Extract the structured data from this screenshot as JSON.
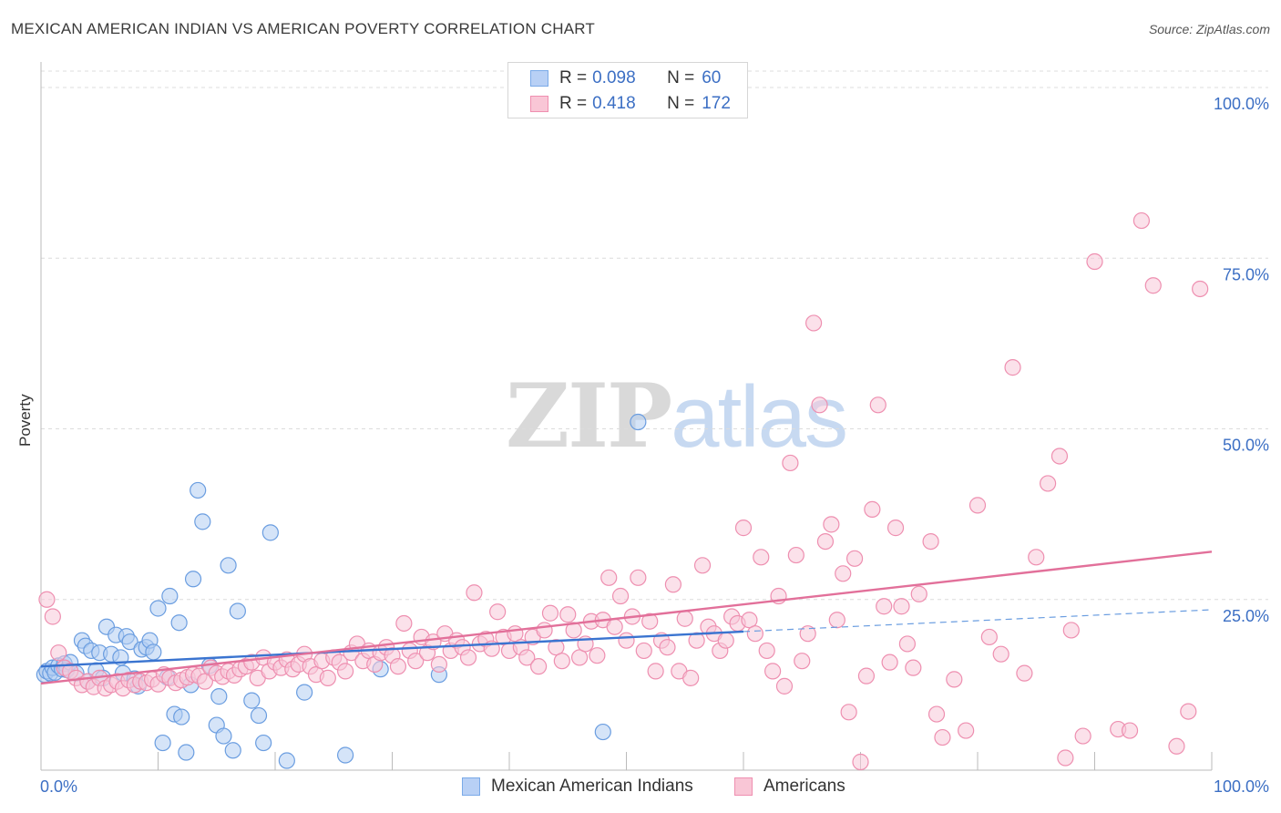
{
  "header": {
    "title": "MEXICAN AMERICAN INDIAN VS AMERICAN POVERTY CORRELATION CHART",
    "source": "Source: ZipAtlas.com"
  },
  "legend": {
    "rows": [
      {
        "r_label": "R =",
        "r_value": "0.098",
        "n_label": "N =",
        "n_value": "60",
        "color": "#7aaae8",
        "fill": "#b8d0f5"
      },
      {
        "r_label": "R =",
        "r_value": "0.418",
        "n_label": "N =",
        "n_value": "172",
        "color": "#ef8fb0",
        "fill": "#f9c6d6"
      }
    ]
  },
  "watermark": {
    "part1": "ZIP",
    "part2": "atlas"
  },
  "chart_data": {
    "type": "scatter",
    "title": "MEXICAN AMERICAN INDIAN VS AMERICAN POVERTY CORRELATION CHART",
    "ylabel": "Poverty",
    "xlim": [
      0,
      100
    ],
    "ylim": [
      0,
      100
    ],
    "x_tick_labels": [
      "0.0%",
      "100.0%"
    ],
    "y_tick_labels": [
      "25.0%",
      "50.0%",
      "75.0%",
      "100.0%"
    ],
    "y_ticks": [
      25,
      50,
      75,
      100
    ],
    "grid": true,
    "legend_position": "top-center",
    "series": [
      {
        "name": "Mexican American Indians",
        "color": "#6a9de0",
        "fill": "#b3cdf3",
        "trend": {
          "x": [
            0,
            60
          ],
          "y": [
            15.2,
            20.3
          ],
          "dashed_to": [
            100,
            23.5
          ]
        },
        "points": [
          [
            0.3,
            14
          ],
          [
            0.5,
            14.5
          ],
          [
            0.8,
            14.2
          ],
          [
            1,
            15
          ],
          [
            1.2,
            14.3
          ],
          [
            1.5,
            15.3
          ],
          [
            1.8,
            14.8
          ],
          [
            2,
            15.6
          ],
          [
            2.2,
            14.7
          ],
          [
            2.5,
            15.8
          ],
          [
            3,
            14.2
          ],
          [
            3.5,
            19
          ],
          [
            3.8,
            18.2
          ],
          [
            4,
            13
          ],
          [
            4.3,
            17.5
          ],
          [
            4.7,
            14.6
          ],
          [
            5,
            17.2
          ],
          [
            5.3,
            13.5
          ],
          [
            5.6,
            21
          ],
          [
            6,
            17
          ],
          [
            6.4,
            19.8
          ],
          [
            6.8,
            16.5
          ],
          [
            7,
            14.2
          ],
          [
            7.3,
            19.6
          ],
          [
            7.6,
            18.8
          ],
          [
            8,
            13.4
          ],
          [
            8.3,
            12.3
          ],
          [
            8.6,
            17.7
          ],
          [
            9,
            18
          ],
          [
            9.3,
            19
          ],
          [
            9.6,
            17.3
          ],
          [
            10,
            23.7
          ],
          [
            10.4,
            4
          ],
          [
            10.8,
            13.6
          ],
          [
            11,
            25.5
          ],
          [
            11.4,
            8.2
          ],
          [
            11.8,
            21.6
          ],
          [
            12,
            7.8
          ],
          [
            12.4,
            2.6
          ],
          [
            12.8,
            12.5
          ],
          [
            13,
            28
          ],
          [
            13.4,
            41
          ],
          [
            13.8,
            36.4
          ],
          [
            14.4,
            15.3
          ],
          [
            15,
            6.6
          ],
          [
            15.2,
            10.8
          ],
          [
            15.6,
            5
          ],
          [
            16,
            30
          ],
          [
            16.4,
            2.9
          ],
          [
            16.8,
            23.3
          ],
          [
            18,
            10.2
          ],
          [
            18.6,
            8
          ],
          [
            19,
            4
          ],
          [
            19.6,
            34.8
          ],
          [
            21,
            1.4
          ],
          [
            22.5,
            11.4
          ],
          [
            26,
            2.2
          ],
          [
            29,
            14.8
          ],
          [
            34,
            14
          ],
          [
            48,
            5.6
          ],
          [
            51,
            51
          ]
        ]
      },
      {
        "name": "Americans",
        "color": "#ee8fb0",
        "fill": "#f8c8d8",
        "trend": {
          "x": [
            0,
            100
          ],
          "y": [
            12.7,
            32
          ]
        },
        "points": [
          [
            0.5,
            25
          ],
          [
            1,
            22.5
          ],
          [
            1.5,
            17.2
          ],
          [
            2,
            15
          ],
          [
            2.5,
            14.5
          ],
          [
            3,
            13.5
          ],
          [
            3.5,
            12.5
          ],
          [
            4,
            13
          ],
          [
            4.5,
            12.2
          ],
          [
            5,
            13.5
          ],
          [
            5.5,
            12
          ],
          [
            6,
            12.5
          ],
          [
            6.5,
            13
          ],
          [
            7,
            12
          ],
          [
            7.5,
            13.2
          ],
          [
            8,
            12.5
          ],
          [
            8.5,
            13
          ],
          [
            9,
            12.8
          ],
          [
            9.5,
            13.3
          ],
          [
            10,
            12.6
          ],
          [
            10.5,
            14
          ],
          [
            11,
            13.5
          ],
          [
            11.5,
            12.8
          ],
          [
            12,
            13.2
          ],
          [
            12.5,
            13.6
          ],
          [
            13,
            14
          ],
          [
            13.5,
            13.8
          ],
          [
            14,
            13
          ],
          [
            14.5,
            15
          ],
          [
            15,
            14.2
          ],
          [
            15.5,
            13.7
          ],
          [
            16,
            14.5
          ],
          [
            16.5,
            13.9
          ],
          [
            17,
            14.8
          ],
          [
            17.5,
            15.2
          ],
          [
            18,
            15.8
          ],
          [
            18.5,
            13.5
          ],
          [
            19,
            16.5
          ],
          [
            19.5,
            14.5
          ],
          [
            20,
            15.8
          ],
          [
            20.5,
            15
          ],
          [
            21,
            16.2
          ],
          [
            21.5,
            14.8
          ],
          [
            22,
            15.5
          ],
          [
            22.5,
            17
          ],
          [
            23,
            15.2
          ],
          [
            23.5,
            14
          ],
          [
            24,
            16
          ],
          [
            24.5,
            13.5
          ],
          [
            25,
            16.5
          ],
          [
            25.5,
            15.8
          ],
          [
            26,
            14.5
          ],
          [
            26.5,
            17.2
          ],
          [
            27,
            18.5
          ],
          [
            27.5,
            16
          ],
          [
            28,
            17.5
          ],
          [
            28.5,
            15.5
          ],
          [
            29,
            17.2
          ],
          [
            29.5,
            18
          ],
          [
            30,
            16.8
          ],
          [
            30.5,
            15.2
          ],
          [
            31,
            21.5
          ],
          [
            31.5,
            17.5
          ],
          [
            32,
            16
          ],
          [
            32.5,
            19.5
          ],
          [
            33,
            17.2
          ],
          [
            33.5,
            18.8
          ],
          [
            34,
            15.5
          ],
          [
            34.5,
            20
          ],
          [
            35,
            17.5
          ],
          [
            35.5,
            19
          ],
          [
            36,
            18
          ],
          [
            36.5,
            16.5
          ],
          [
            37,
            26
          ],
          [
            37.5,
            18.5
          ],
          [
            38,
            19.2
          ],
          [
            38.5,
            17.8
          ],
          [
            39,
            23.2
          ],
          [
            39.5,
            19.5
          ],
          [
            40,
            17.5
          ],
          [
            40.5,
            20
          ],
          [
            41,
            18
          ],
          [
            41.5,
            16.5
          ],
          [
            42,
            19.5
          ],
          [
            42.5,
            15.2
          ],
          [
            43,
            20.5
          ],
          [
            43.5,
            23
          ],
          [
            44,
            18
          ],
          [
            44.5,
            16
          ],
          [
            45,
            22.8
          ],
          [
            45.5,
            20.5
          ],
          [
            46,
            16.5
          ],
          [
            46.5,
            18.5
          ],
          [
            47,
            21.8
          ],
          [
            47.5,
            16.8
          ],
          [
            48,
            22
          ],
          [
            48.5,
            28.2
          ],
          [
            49,
            21
          ],
          [
            49.5,
            25.5
          ],
          [
            50,
            19
          ],
          [
            50.5,
            22.5
          ],
          [
            51,
            28.2
          ],
          [
            51.5,
            17.5
          ],
          [
            52,
            21.8
          ],
          [
            52.5,
            14.5
          ],
          [
            53,
            19
          ],
          [
            53.5,
            18
          ],
          [
            54,
            27.2
          ],
          [
            54.5,
            14.5
          ],
          [
            55,
            22.2
          ],
          [
            55.5,
            13.5
          ],
          [
            56,
            19
          ],
          [
            56.5,
            30
          ],
          [
            57,
            21
          ],
          [
            57.5,
            20
          ],
          [
            58,
            17.5
          ],
          [
            58.5,
            19
          ],
          [
            59,
            22.5
          ],
          [
            59.5,
            21.5
          ],
          [
            60,
            35.5
          ],
          [
            60.5,
            22
          ],
          [
            61,
            20
          ],
          [
            61.5,
            31.2
          ],
          [
            62,
            17.5
          ],
          [
            62.5,
            14.5
          ],
          [
            63,
            25.5
          ],
          [
            63.5,
            12.3
          ],
          [
            64,
            45
          ],
          [
            64.5,
            31.5
          ],
          [
            65,
            16
          ],
          [
            65.5,
            20
          ],
          [
            66,
            65.5
          ],
          [
            66.5,
            53.5
          ],
          [
            67,
            33.5
          ],
          [
            67.5,
            36
          ],
          [
            68,
            22
          ],
          [
            68.5,
            28.8
          ],
          [
            69,
            8.5
          ],
          [
            69.5,
            31
          ],
          [
            70,
            1.2
          ],
          [
            70.5,
            13.8
          ],
          [
            71,
            38.2
          ],
          [
            71.5,
            53.5
          ],
          [
            72,
            24
          ],
          [
            72.5,
            15.8
          ],
          [
            73,
            35.5
          ],
          [
            73.5,
            24
          ],
          [
            74,
            18.5
          ],
          [
            74.5,
            15
          ],
          [
            75,
            25.8
          ],
          [
            76,
            33.5
          ],
          [
            76.5,
            8.2
          ],
          [
            77,
            4.8
          ],
          [
            78,
            13.3
          ],
          [
            79,
            5.8
          ],
          [
            80,
            38.8
          ],
          [
            81,
            19.5
          ],
          [
            82,
            17
          ],
          [
            83,
            59
          ],
          [
            84,
            14.2
          ],
          [
            85,
            31.2
          ],
          [
            86,
            42
          ],
          [
            87,
            46
          ],
          [
            87.5,
            1.8
          ],
          [
            88,
            20.5
          ],
          [
            89,
            5
          ],
          [
            90,
            74.5
          ],
          [
            92,
            6
          ],
          [
            93,
            5.8
          ],
          [
            94,
            80.5
          ],
          [
            95,
            71
          ],
          [
            97,
            3.5
          ],
          [
            98,
            8.6
          ],
          [
            99,
            70.5
          ]
        ]
      }
    ]
  }
}
